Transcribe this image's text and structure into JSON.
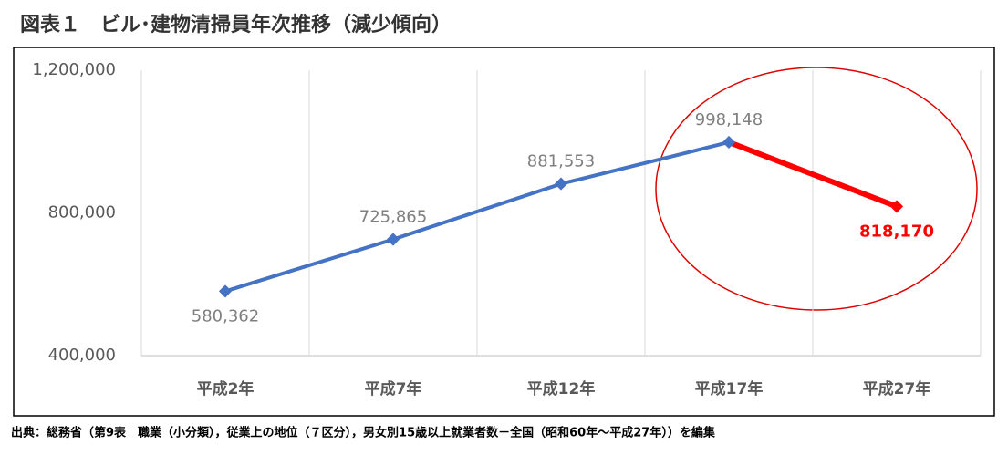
{
  "chart_data": {
    "type": "line",
    "title": "図表１　ビル･建物清掃員年次推移（減少傾向）",
    "categories": [
      "平成2年",
      "平成7年",
      "平成12年",
      "平成17年",
      "平成27年"
    ],
    "series": [
      {
        "name": "ビル･建物清掃員",
        "color": "#4472c4",
        "values": [
          580362,
          725865,
          881553,
          998148,
          818170
        ],
        "value_labels": [
          "580,362",
          "725,865",
          "881,553",
          "998,148",
          "818,170"
        ],
        "point_colors": [
          "#4472c4",
          "#4472c4",
          "#4472c4",
          "#4472c4",
          "#ff0000"
        ]
      }
    ],
    "ylim": [
      400000,
      1200000
    ],
    "yticks": [
      {
        "value": 400000,
        "label": "400,000"
      },
      {
        "value": 800000,
        "label": "800,000"
      },
      {
        "value": 1200000,
        "label": "1,200,000"
      }
    ],
    "grid": true,
    "source": "出典：総務省（第9表　職業（小分類），従業上の地位（７区分），男女別15歳以上就業者数－全国（昭和60年～平成27年））を編集"
  }
}
